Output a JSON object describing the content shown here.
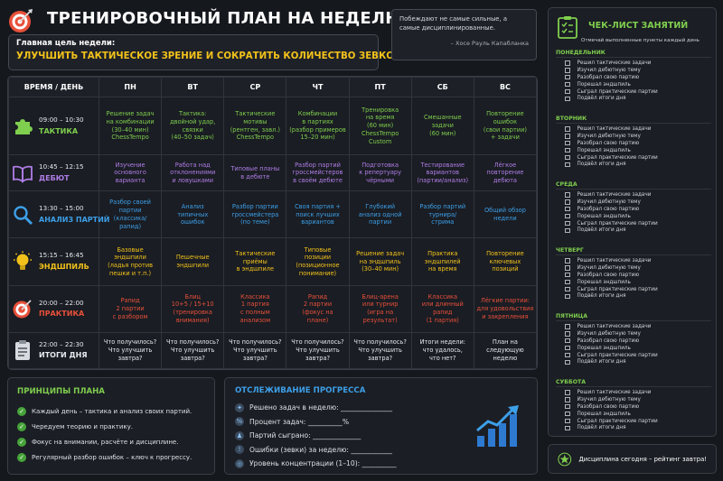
{
  "header": {
    "title": "ТРЕНИРОВОЧНЫЙ ПЛАН НА НЕДЕЛЮ",
    "goal_label": "Главная цель недели:",
    "goal_text": "УЛУЧШИТЬ ТАКТИЧЕСКОЕ ЗРЕНИЕ И СОКРАТИТЬ КОЛИЧЕСТВО ЗЕВКОВ"
  },
  "quote": {
    "text": "Побеждают не самые сильные, а самые дисциплинированные.",
    "author": "– Хосе Рауль Капабланка"
  },
  "schedule": {
    "corner": "ВРЕМЯ / ДЕНЬ",
    "days": [
      "ПН",
      "ВТ",
      "СР",
      "ЧТ",
      "ПТ",
      "СБ",
      "ВС"
    ],
    "rows": [
      {
        "icon": "puzzle-icon",
        "time": "09:00 – 10:30",
        "name": "ТАКТИКА",
        "color": "#7fce4e",
        "cells": [
          "Решение задач\nна комбинации\n(30–40 мин)\nChessTempo",
          "Тактика:\nдвойной удар,\nсвязки\n(40–50 задач)",
          "Тактические\nмотивы\n(рентген, завл.)\nChessTempo",
          "Комбинации\nв партиях\n(разбор примеров\n15–20 мин)",
          "Тренировка\nна время\n(60 мин)\nChessTempo\nCustom",
          "Смешанные\nзадачи\n(60 мин)",
          "Повторение\nошибок\n(свои партии)\n+ задачи"
        ]
      },
      {
        "icon": "book-icon",
        "time": "10:45 – 12:15",
        "name": "ДЕБЮТ",
        "color": "#b07de8",
        "cells": [
          "Изучение\nосновного\nварианта",
          "Работа над\nотклонениями\nи ловушками",
          "Типовые планы\nв дебюте",
          "Разбор партий\nгроссмейстеров\nв своём дебюте",
          "Подготовка\nк репертуару\nчёрными",
          "Тестирование\nвариантов\n(партии/анализ)",
          "Лёгкое\nповторение\nдебюта"
        ]
      },
      {
        "icon": "magnifier-icon",
        "time": "13:30 – 15:00",
        "name": "АНАЛИЗ ПАРТИЙ",
        "color": "#3d9fe8",
        "cells": [
          "Разбор своей\nпартии\n(классика/\nрапид)",
          "Анализ\nтипичных\nошибок",
          "Разбор партии\nгроссмейстера\n(по теме)",
          "Своя партия +\nпоиск лучших\nвариантов",
          "Глубокий\nанализ одной\nпартии",
          "Разбор партий\nтурнира/\nстрима",
          "Общий обзор\nнедели"
        ]
      },
      {
        "icon": "lightbulb-icon",
        "time": "15:15 – 16:45",
        "name": "ЭНДШПИЛЬ",
        "color": "#f2c21b",
        "cells": [
          "Базовые\nэндшпили\n(ладья против\nпешки и т.п.)",
          "Пешечные\nэндшпили",
          "Тактические\nприёмы\nв эндшпиле",
          "Типовые\nпозиции\n(позиционное\nпонимание)",
          "Решение задач\nна эндшпиль\n(30–40 мин)",
          "Практика\nэндшпилей\nна время",
          "Повторение\nключевых\nпозиций"
        ]
      },
      {
        "icon": "target-icon",
        "time": "20:00 – 22:00",
        "name": "ПРАКТИКА",
        "color": "#e8503a",
        "cells": [
          "Рапид\n2 партии\nс разбором",
          "Блиц\n10+5 / 15+10\n(тренировка\nвнимания)",
          "Классика\n1 партия\nс полным\nанализом",
          "Рапид\n2 партии\n(фокус на\nплане)",
          "Блиц-арена\nили турнир\n(игра на\nрезультат)",
          "Классика\nили длинный\nрапид\n(1 партия)",
          "Лёгкие партии:\nдля удовольствия\nи закрепления"
        ]
      },
      {
        "icon": "clipboard-icon",
        "time": "22:00 – 22:30",
        "name": "ИТОГИ ДНЯ",
        "color": "#e6e9ed",
        "cells": [
          "Что получилось?\nЧто улучшить\nзавтра?",
          "Что получилось?\nЧто улучшить\nзавтра?",
          "Что получилось?\nЧто улучшить\nзавтра?",
          "Что получилось?\nЧто улучшить\nзавтра?",
          "Что получилось?\nЧто улучшить\nзавтра?",
          "Итоги недели:\nчто удалось,\nчто нет?",
          "План на\nследующую\nнеделю"
        ]
      }
    ]
  },
  "principles": {
    "title": "ПРИНЦИПЫ ПЛАНА",
    "items": [
      "Каждый день – тактика и анализ своих партий.",
      "Чередуем теорию и практику.",
      "Фокус на внимании, расчёте и дисциплине.",
      "Регулярный разбор ошибок – ключ к прогрессу."
    ]
  },
  "progress": {
    "title": "ОТСЛЕЖИВАНИЕ ПРОГРЕССА",
    "items": [
      {
        "icon": "puzzle-icon",
        "text": "Решено задач в неделю: _______________"
      },
      {
        "icon": "percent-icon",
        "text": "Процент задач: __________%"
      },
      {
        "icon": "pawn-icon",
        "text": "Партий сыграно: ______________"
      },
      {
        "icon": "warning-icon",
        "text": "Ошибки (зевки) за неделю: ____________"
      },
      {
        "icon": "target-icon",
        "text": "Уровень концентрации (1–10): __________"
      }
    ]
  },
  "checklist": {
    "title": "ЧЕК-ЛИСТ ЗАНЯТИЙ",
    "subtitle": "Отмечай выполненные пункты каждый день",
    "tasks": [
      "Решил тактические задачи",
      "Изучил дебютную тему",
      "Разобрал свою партию",
      "Порешал эндшпиль",
      "Сыграл практические партии",
      "Подвёл итоги дня"
    ],
    "days": [
      "ПОНЕДЕЛЬНИК",
      "ВТОРНИК",
      "СРЕДА",
      "ЧЕТВЕРГ",
      "ПЯТНИЦА",
      "СУББОТА"
    ]
  },
  "footer": {
    "text": "Дисциплина сегодня – рейтинг завтра!",
    "icon": "star-icon"
  },
  "colors": {
    "green": "#7fce4e",
    "yellow": "#f2c21b",
    "blue": "#3d9fe8",
    "purple": "#b07de8",
    "red": "#e8503a",
    "background": "#15181d"
  }
}
